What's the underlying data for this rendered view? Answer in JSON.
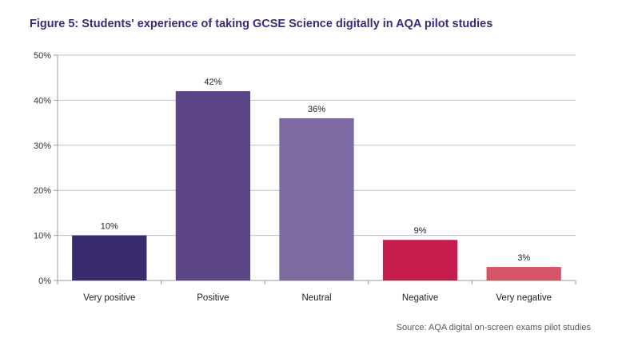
{
  "chart_data": {
    "type": "bar",
    "title": "Figure 5: Students' experience of taking GCSE Science digitally in AQA pilot studies",
    "categories": [
      "Very positive",
      "Positive",
      "Neutral",
      "Negative",
      "Very negative"
    ],
    "values": [
      10,
      42,
      36,
      9,
      3
    ],
    "value_labels": [
      "10%",
      "42%",
      "36%",
      "9%",
      "3%"
    ],
    "colors": [
      "#3a2a6e",
      "#5b4587",
      "#7d6aa0",
      "#c51d4d",
      "#d65468"
    ],
    "ylim": [
      0,
      50
    ],
    "yticks": [
      0,
      10,
      20,
      30,
      40,
      50
    ],
    "ytick_labels": [
      "0%",
      "10%",
      "20%",
      "30%",
      "40%",
      "50%"
    ],
    "xlabel": "",
    "ylabel": "",
    "grid": true,
    "source": "Source: AQA digital on-screen exams pilot studies"
  }
}
